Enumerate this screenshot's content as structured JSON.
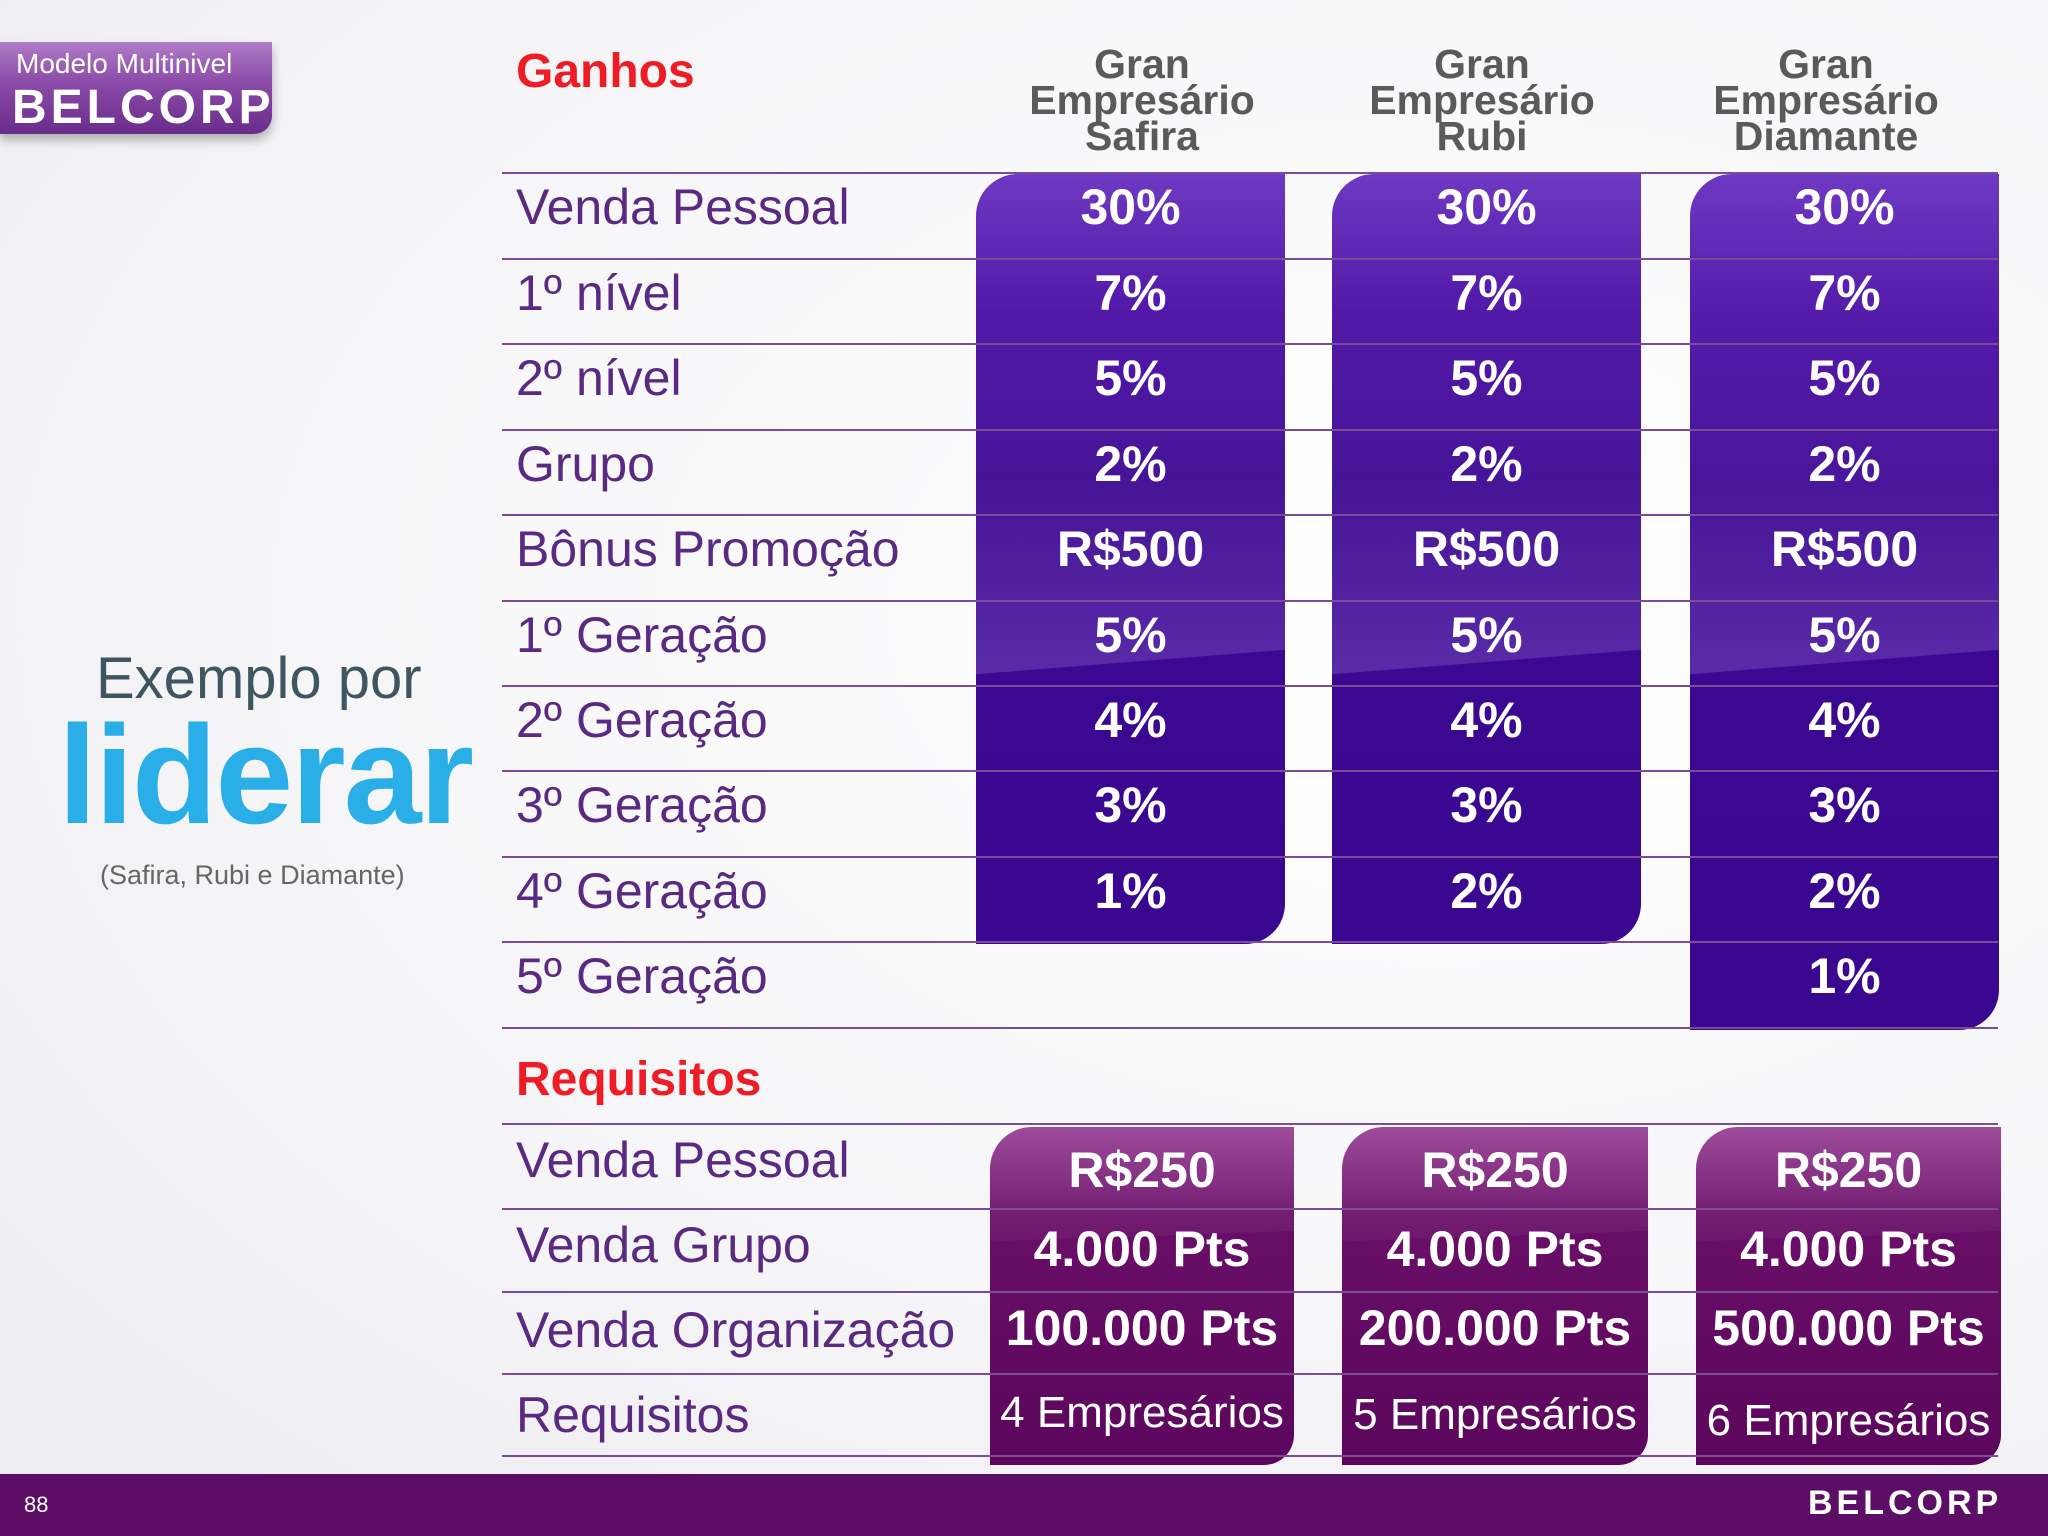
{
  "logo": {
    "subtitle": "Modelo Multinivel",
    "brand": "BELCORP"
  },
  "left": {
    "example": "Exemplo por",
    "big": "liderar",
    "note": "(Safira, Rubi e Diamante)"
  },
  "earnings": {
    "title": "Ganhos",
    "columns": [
      {
        "line1": "Gran",
        "line2": "Empresário",
        "line3": "Safira"
      },
      {
        "line1": "Gran",
        "line2": "Empresário",
        "line3": "Rubi"
      },
      {
        "line1": "Gran",
        "line2": "Empresário",
        "line3": "Diamante"
      }
    ],
    "rows": [
      {
        "label": "Venda Pessoal",
        "values": [
          "30%",
          "30%",
          "30%"
        ]
      },
      {
        "label": "1º nível",
        "values": [
          "7%",
          "7%",
          "7%"
        ]
      },
      {
        "label": "2º nível",
        "values": [
          "5%",
          "5%",
          "5%"
        ]
      },
      {
        "label": "Grupo",
        "values": [
          "2%",
          "2%",
          "2%"
        ]
      },
      {
        "label": "Bônus Promoção",
        "values": [
          "R$500",
          "R$500",
          "R$500"
        ]
      },
      {
        "label": "1º Geração",
        "values": [
          "5%",
          "5%",
          "5%"
        ]
      },
      {
        "label": "2º Geração",
        "values": [
          "4%",
          "4%",
          "4%"
        ]
      },
      {
        "label": "3º Geração",
        "values": [
          "3%",
          "3%",
          "3%"
        ]
      },
      {
        "label": "4º Geração",
        "values": [
          "1%",
          "2%",
          "2%"
        ]
      },
      {
        "label": "5º Geração",
        "values": [
          "",
          "",
          "1%"
        ]
      }
    ]
  },
  "requirements": {
    "title": "Requisitos",
    "rows": [
      {
        "label": "Venda Pessoal",
        "values": [
          "R$250",
          "R$250",
          "R$250"
        ]
      },
      {
        "label": "Venda Grupo",
        "values": [
          "4.000 Pts",
          "4.000 Pts",
          "4.000 Pts"
        ]
      },
      {
        "label": "Venda Organização",
        "values": [
          "100.000 Pts",
          "200.000 Pts",
          "500.000 Pts"
        ]
      },
      {
        "label": "Requisitos",
        "values": [
          "4 Empresários",
          "5 Empresários",
          "6 Empresários"
        ]
      }
    ]
  },
  "footer": {
    "page": "88",
    "brand": "BELCORP"
  },
  "colors": {
    "accent_red": "#ee1c24",
    "liderar_blue": "#2aaee8",
    "panel_purple": "#3c0892",
    "panel_magenta": "#5b065c",
    "footer": "#5c0e66"
  }
}
